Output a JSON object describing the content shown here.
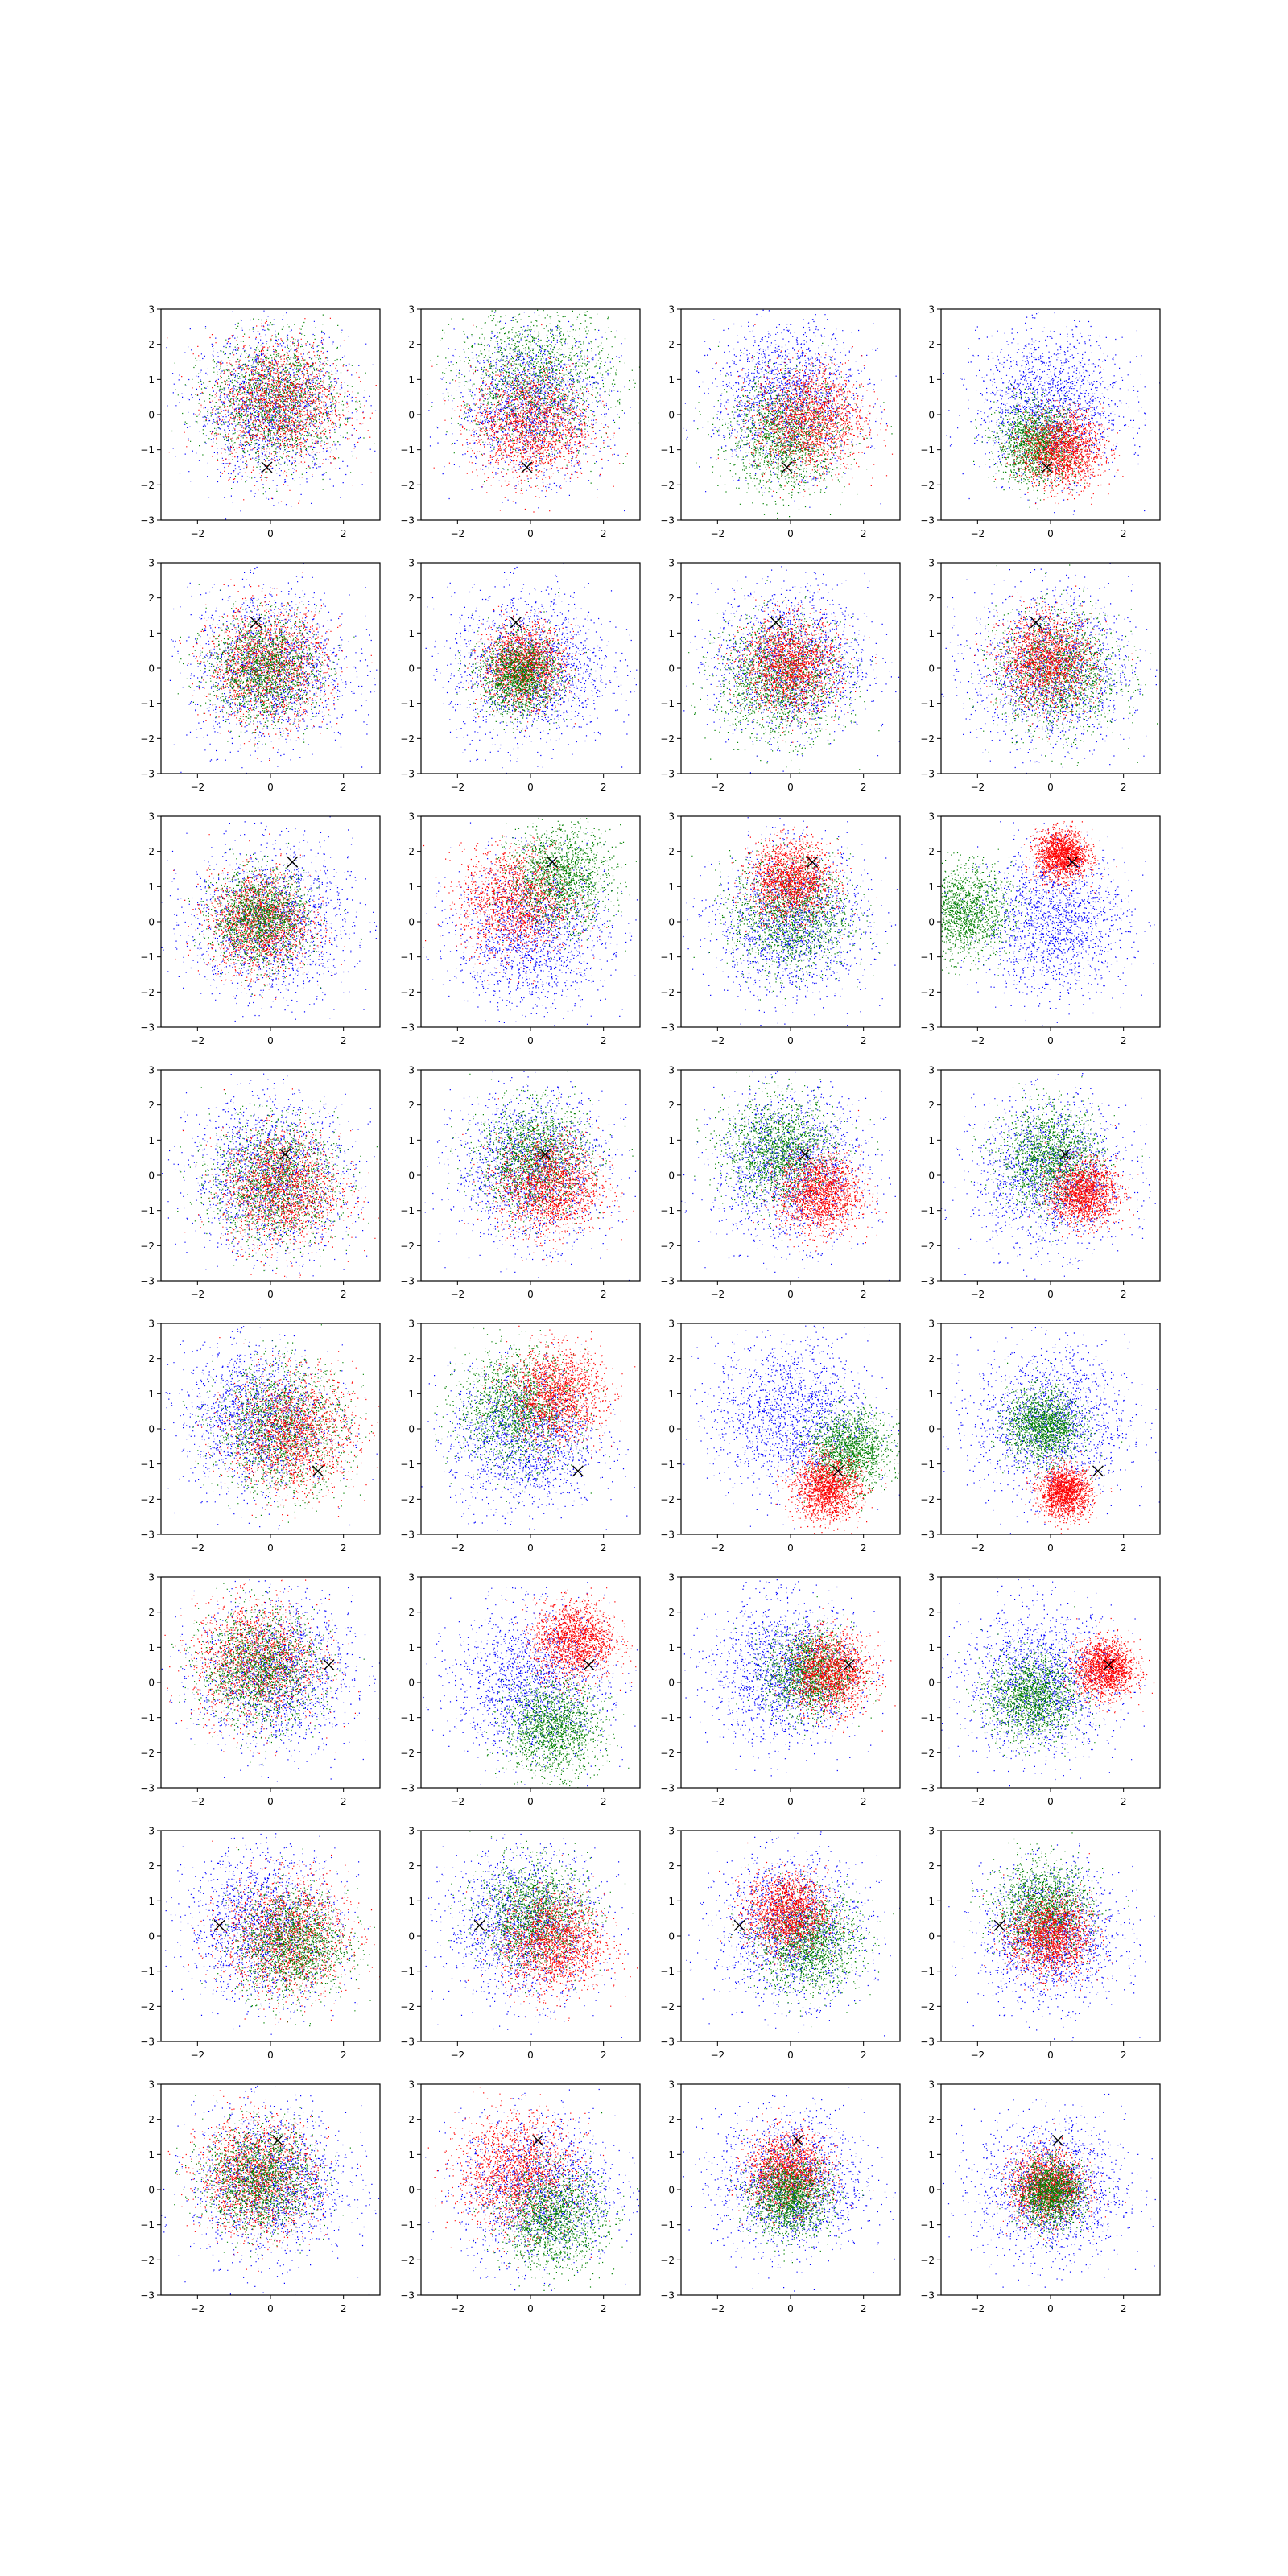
{
  "figure": {
    "rows": 8,
    "cols": 4
  },
  "colors": {
    "blue": "#0000ff",
    "green": "#008000",
    "red": "#ff0000",
    "marker": "#000000"
  },
  "chart_data": {
    "type": "scatter",
    "title": "",
    "xlabel": "",
    "ylabel": "",
    "xlim": [
      -3,
      3
    ],
    "ylim": [
      -3,
      3
    ],
    "grid": false,
    "legend": "none",
    "x_ticks": [
      -2,
      0,
      2
    ],
    "y_ticks": [
      -3,
      -2,
      -1,
      0,
      1,
      2,
      3
    ],
    "series_colors": [
      "blue",
      "green",
      "red"
    ],
    "panels": [
      {
        "row": 0,
        "col": 0,
        "marker": [
          -0.1,
          -1.5
        ],
        "series": [
          {
            "color": "blue",
            "cx": 0.0,
            "cy": 0.2,
            "sd": 1.05
          },
          {
            "color": "green",
            "cx": 0.1,
            "cy": 0.4,
            "sd": 0.9
          },
          {
            "color": "red",
            "cx": 0.2,
            "cy": 0.3,
            "sd": 0.9
          }
        ]
      },
      {
        "row": 0,
        "col": 1,
        "marker": [
          -0.1,
          -1.5
        ],
        "series": [
          {
            "color": "blue",
            "cx": 0.0,
            "cy": 0.3,
            "sd": 1.0
          },
          {
            "color": "green",
            "cx": 0.1,
            "cy": 1.0,
            "sd": 1.05
          },
          {
            "color": "red",
            "cx": 0.0,
            "cy": -0.3,
            "sd": 0.8
          }
        ]
      },
      {
        "row": 0,
        "col": 2,
        "marker": [
          -0.1,
          -1.5
        ],
        "series": [
          {
            "color": "blue",
            "cx": -0.1,
            "cy": 0.5,
            "sd": 1.0
          },
          {
            "color": "green",
            "cx": -0.1,
            "cy": -0.6,
            "sd": 0.8
          },
          {
            "color": "red",
            "cx": 0.5,
            "cy": -0.1,
            "sd": 0.75
          }
        ]
      },
      {
        "row": 0,
        "col": 3,
        "marker": [
          -0.1,
          -1.5
        ],
        "series": [
          {
            "color": "blue",
            "cx": 0.0,
            "cy": 0.3,
            "sd": 1.0
          },
          {
            "color": "green",
            "cx": -0.4,
            "cy": -0.8,
            "sd": 0.55
          },
          {
            "color": "red",
            "cx": 0.3,
            "cy": -1.0,
            "sd": 0.55
          }
        ]
      },
      {
        "row": 1,
        "col": 0,
        "marker": [
          -0.4,
          1.3
        ],
        "series": [
          {
            "color": "blue",
            "cx": 0.0,
            "cy": 0.0,
            "sd": 1.1
          },
          {
            "color": "red",
            "cx": -0.1,
            "cy": 0.1,
            "sd": 0.8
          },
          {
            "color": "green",
            "cx": -0.2,
            "cy": 0.0,
            "sd": 0.75
          }
        ]
      },
      {
        "row": 1,
        "col": 1,
        "marker": [
          -0.4,
          1.3
        ],
        "series": [
          {
            "color": "blue",
            "cx": 0.0,
            "cy": 0.0,
            "sd": 1.1
          },
          {
            "color": "red",
            "cx": -0.2,
            "cy": 0.1,
            "sd": 0.55
          },
          {
            "color": "green",
            "cx": -0.3,
            "cy": -0.2,
            "sd": 0.55
          }
        ]
      },
      {
        "row": 1,
        "col": 2,
        "marker": [
          -0.4,
          1.3
        ],
        "series": [
          {
            "color": "blue",
            "cx": 0.0,
            "cy": 0.2,
            "sd": 1.05
          },
          {
            "color": "green",
            "cx": -0.3,
            "cy": -0.3,
            "sd": 0.85
          },
          {
            "color": "red",
            "cx": 0.0,
            "cy": 0.1,
            "sd": 0.65
          }
        ]
      },
      {
        "row": 1,
        "col": 3,
        "marker": [
          -0.4,
          1.3
        ],
        "series": [
          {
            "color": "blue",
            "cx": 0.0,
            "cy": 0.0,
            "sd": 1.1
          },
          {
            "color": "green",
            "cx": 0.2,
            "cy": -0.1,
            "sd": 0.85
          },
          {
            "color": "red",
            "cx": -0.1,
            "cy": 0.2,
            "sd": 0.65
          }
        ]
      },
      {
        "row": 2,
        "col": 0,
        "marker": [
          0.6,
          1.7
        ],
        "series": [
          {
            "color": "blue",
            "cx": 0.0,
            "cy": 0.0,
            "sd": 1.1
          },
          {
            "color": "red",
            "cx": -0.3,
            "cy": 0.0,
            "sd": 0.7
          },
          {
            "color": "green",
            "cx": -0.3,
            "cy": 0.1,
            "sd": 0.65
          }
        ]
      },
      {
        "row": 2,
        "col": 1,
        "marker": [
          0.6,
          1.7
        ],
        "series": [
          {
            "color": "blue",
            "cx": 0.0,
            "cy": -0.3,
            "sd": 1.05
          },
          {
            "color": "red",
            "cx": -0.4,
            "cy": 0.6,
            "sd": 0.75
          },
          {
            "color": "green",
            "cx": 0.8,
            "cy": 1.3,
            "sd": 0.7
          }
        ]
      },
      {
        "row": 2,
        "col": 2,
        "marker": [
          0.6,
          1.7
        ],
        "series": [
          {
            "color": "blue",
            "cx": 0.0,
            "cy": 0.0,
            "sd": 1.05
          },
          {
            "color": "green",
            "cx": 0.0,
            "cy": 0.2,
            "sd": 0.8
          },
          {
            "color": "red",
            "cx": 0.0,
            "cy": 1.2,
            "sd": 0.55
          }
        ]
      },
      {
        "row": 2,
        "col": 3,
        "marker": [
          0.6,
          1.7
        ],
        "series": [
          {
            "color": "blue",
            "cx": 0.1,
            "cy": 0.0,
            "sd": 1.0
          },
          {
            "color": "green",
            "cx": -2.4,
            "cy": 0.3,
            "sd": 0.65
          },
          {
            "color": "red",
            "cx": 0.3,
            "cy": 1.9,
            "sd": 0.35
          }
        ]
      },
      {
        "row": 3,
        "col": 0,
        "marker": [
          0.4,
          0.6
        ],
        "series": [
          {
            "color": "blue",
            "cx": 0.0,
            "cy": 0.0,
            "sd": 1.1
          },
          {
            "color": "green",
            "cx": 0.1,
            "cy": -0.2,
            "sd": 0.85
          },
          {
            "color": "red",
            "cx": 0.3,
            "cy": -0.4,
            "sd": 0.8
          }
        ]
      },
      {
        "row": 3,
        "col": 1,
        "marker": [
          0.4,
          0.6
        ],
        "series": [
          {
            "color": "blue",
            "cx": 0.0,
            "cy": 0.2,
            "sd": 1.05
          },
          {
            "color": "green",
            "cx": 0.1,
            "cy": 0.5,
            "sd": 0.75
          },
          {
            "color": "red",
            "cx": 0.5,
            "cy": -0.3,
            "sd": 0.7
          }
        ]
      },
      {
        "row": 3,
        "col": 2,
        "marker": [
          0.4,
          0.6
        ],
        "series": [
          {
            "color": "blue",
            "cx": 0.0,
            "cy": 0.2,
            "sd": 1.05
          },
          {
            "color": "green",
            "cx": -0.3,
            "cy": 0.7,
            "sd": 0.75
          },
          {
            "color": "red",
            "cx": 0.8,
            "cy": -0.5,
            "sd": 0.55
          }
        ]
      },
      {
        "row": 3,
        "col": 3,
        "marker": [
          0.4,
          0.6
        ],
        "series": [
          {
            "color": "blue",
            "cx": 0.0,
            "cy": 0.0,
            "sd": 1.05
          },
          {
            "color": "green",
            "cx": 0.0,
            "cy": 0.5,
            "sd": 0.7
          },
          {
            "color": "red",
            "cx": 0.9,
            "cy": -0.5,
            "sd": 0.45
          }
        ]
      },
      {
        "row": 4,
        "col": 0,
        "marker": [
          1.3,
          -1.2
        ],
        "series": [
          {
            "color": "blue",
            "cx": -0.4,
            "cy": 0.3,
            "sd": 1.0
          },
          {
            "color": "green",
            "cx": 0.3,
            "cy": 0.0,
            "sd": 0.9
          },
          {
            "color": "red",
            "cx": 0.6,
            "cy": -0.1,
            "sd": 0.85
          }
        ]
      },
      {
        "row": 4,
        "col": 1,
        "marker": [
          1.3,
          -1.2
        ],
        "series": [
          {
            "color": "blue",
            "cx": -0.2,
            "cy": -0.3,
            "sd": 1.0
          },
          {
            "color": "green",
            "cx": -0.4,
            "cy": 0.6,
            "sd": 0.8
          },
          {
            "color": "red",
            "cx": 0.7,
            "cy": 1.0,
            "sd": 0.65
          }
        ]
      },
      {
        "row": 4,
        "col": 2,
        "marker": [
          1.3,
          -1.2
        ],
        "series": [
          {
            "color": "blue",
            "cx": 0.0,
            "cy": 0.4,
            "sd": 1.05
          },
          {
            "color": "green",
            "cx": 1.6,
            "cy": -0.6,
            "sd": 0.55
          },
          {
            "color": "red",
            "cx": 1.0,
            "cy": -1.7,
            "sd": 0.45
          }
        ]
      },
      {
        "row": 4,
        "col": 3,
        "marker": [
          1.3,
          -1.2
        ],
        "series": [
          {
            "color": "blue",
            "cx": 0.0,
            "cy": 0.2,
            "sd": 1.05
          },
          {
            "color": "green",
            "cx": -0.2,
            "cy": 0.1,
            "sd": 0.5
          },
          {
            "color": "red",
            "cx": 0.4,
            "cy": -1.8,
            "sd": 0.35
          }
        ]
      },
      {
        "row": 5,
        "col": 0,
        "marker": [
          1.6,
          0.5
        ],
        "series": [
          {
            "color": "blue",
            "cx": 0.1,
            "cy": 0.2,
            "sd": 1.05
          },
          {
            "color": "red",
            "cx": -0.4,
            "cy": 0.6,
            "sd": 0.85
          },
          {
            "color": "green",
            "cx": -0.3,
            "cy": 0.4,
            "sd": 0.8
          }
        ]
      },
      {
        "row": 5,
        "col": 1,
        "marker": [
          1.6,
          0.5
        ],
        "series": [
          {
            "color": "blue",
            "cx": 0.0,
            "cy": 0.0,
            "sd": 1.05
          },
          {
            "color": "red",
            "cx": 1.2,
            "cy": 1.2,
            "sd": 0.55
          },
          {
            "color": "green",
            "cx": 0.6,
            "cy": -1.3,
            "sd": 0.65
          }
        ]
      },
      {
        "row": 5,
        "col": 2,
        "marker": [
          1.6,
          0.5
        ],
        "series": [
          {
            "color": "blue",
            "cx": -0.2,
            "cy": 0.3,
            "sd": 1.0
          },
          {
            "color": "green",
            "cx": 0.5,
            "cy": 0.3,
            "sd": 0.6
          },
          {
            "color": "red",
            "cx": 1.1,
            "cy": 0.3,
            "sd": 0.55
          }
        ]
      },
      {
        "row": 5,
        "col": 3,
        "marker": [
          1.6,
          0.5
        ],
        "series": [
          {
            "color": "blue",
            "cx": -0.3,
            "cy": 0.0,
            "sd": 1.05
          },
          {
            "color": "green",
            "cx": -0.5,
            "cy": -0.4,
            "sd": 0.6
          },
          {
            "color": "red",
            "cx": 1.5,
            "cy": 0.4,
            "sd": 0.4
          }
        ]
      },
      {
        "row": 6,
        "col": 0,
        "marker": [
          -1.4,
          0.3
        ],
        "series": [
          {
            "color": "blue",
            "cx": -0.2,
            "cy": 0.3,
            "sd": 1.05
          },
          {
            "color": "red",
            "cx": 0.4,
            "cy": 0.0,
            "sd": 0.85
          },
          {
            "color": "green",
            "cx": 0.6,
            "cy": -0.2,
            "sd": 0.75
          }
        ]
      },
      {
        "row": 6,
        "col": 1,
        "marker": [
          -1.4,
          0.3
        ],
        "series": [
          {
            "color": "blue",
            "cx": -0.2,
            "cy": 0.3,
            "sd": 1.05
          },
          {
            "color": "green",
            "cx": 0.1,
            "cy": 0.6,
            "sd": 0.75
          },
          {
            "color": "red",
            "cx": 0.6,
            "cy": -0.2,
            "sd": 0.7
          }
        ]
      },
      {
        "row": 6,
        "col": 2,
        "marker": [
          -1.4,
          0.3
        ],
        "series": [
          {
            "color": "blue",
            "cx": 0.0,
            "cy": 0.2,
            "sd": 1.0
          },
          {
            "color": "green",
            "cx": 0.5,
            "cy": -0.2,
            "sd": 0.7
          },
          {
            "color": "red",
            "cx": -0.1,
            "cy": 0.7,
            "sd": 0.55
          }
        ]
      },
      {
        "row": 6,
        "col": 3,
        "marker": [
          -1.4,
          0.3
        ],
        "series": [
          {
            "color": "blue",
            "cx": 0.0,
            "cy": 0.0,
            "sd": 0.95
          },
          {
            "color": "green",
            "cx": -0.2,
            "cy": 0.8,
            "sd": 0.65
          },
          {
            "color": "red",
            "cx": 0.0,
            "cy": 0.0,
            "sd": 0.55
          }
        ]
      },
      {
        "row": 7,
        "col": 0,
        "marker": [
          0.2,
          1.4
        ],
        "series": [
          {
            "color": "blue",
            "cx": 0.0,
            "cy": 0.2,
            "sd": 1.05
          },
          {
            "color": "red",
            "cx": -0.4,
            "cy": 0.4,
            "sd": 0.8
          },
          {
            "color": "green",
            "cx": -0.3,
            "cy": 0.3,
            "sd": 0.75
          }
        ]
      },
      {
        "row": 7,
        "col": 1,
        "marker": [
          0.2,
          1.4
        ],
        "series": [
          {
            "color": "blue",
            "cx": 0.2,
            "cy": 0.0,
            "sd": 1.05
          },
          {
            "color": "red",
            "cx": -0.4,
            "cy": 0.5,
            "sd": 0.8
          },
          {
            "color": "green",
            "cx": 0.6,
            "cy": -0.8,
            "sd": 0.7
          }
        ]
      },
      {
        "row": 7,
        "col": 2,
        "marker": [
          0.2,
          1.4
        ],
        "series": [
          {
            "color": "blue",
            "cx": 0.0,
            "cy": 0.2,
            "sd": 1.0
          },
          {
            "color": "red",
            "cx": -0.1,
            "cy": 0.5,
            "sd": 0.55
          },
          {
            "color": "green",
            "cx": 0.0,
            "cy": -0.2,
            "sd": 0.55
          }
        ]
      },
      {
        "row": 7,
        "col": 3,
        "marker": [
          0.2,
          1.4
        ],
        "series": [
          {
            "color": "blue",
            "cx": 0.0,
            "cy": 0.0,
            "sd": 1.0
          },
          {
            "color": "red",
            "cx": -0.1,
            "cy": 0.1,
            "sd": 0.5
          },
          {
            "color": "green",
            "cx": 0.0,
            "cy": -0.1,
            "sd": 0.45
          }
        ]
      }
    ]
  }
}
